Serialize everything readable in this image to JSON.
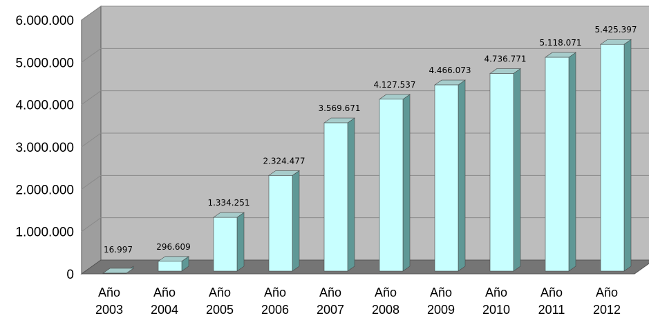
{
  "chart_data": {
    "type": "bar",
    "categories": [
      [
        "Año",
        "2003"
      ],
      [
        "Año",
        "2004"
      ],
      [
        "Año",
        "2005"
      ],
      [
        "Año",
        "2006"
      ],
      [
        "Año",
        "2007"
      ],
      [
        "Año",
        "2008"
      ],
      [
        "Año",
        "2009"
      ],
      [
        "Año",
        "2010"
      ],
      [
        "Año",
        "2011"
      ],
      [
        "Año",
        "2012"
      ]
    ],
    "values": [
      16997,
      296609,
      1334251,
      2324477,
      3569671,
      4127537,
      4466073,
      4736771,
      5118071,
      5425397
    ],
    "data_labels": [
      "16.997",
      "296.609",
      "1.334.251",
      "2.324.477",
      "3.569.671",
      "4.127.537",
      "4.466.073",
      "4.736.771",
      "5.118.071",
      "5.425.397"
    ],
    "y_ticks": [
      "0",
      "1.000.000",
      "2.000.000",
      "3.000.000",
      "4.000.000",
      "5.000.000",
      "6.000.000"
    ],
    "ylim": [
      0,
      6000000
    ],
    "title": "",
    "xlabel": "",
    "ylabel": "",
    "grid": true,
    "legend": "none",
    "colors": {
      "plot_back": "#bdbdbd",
      "plot_side": "#9e9e9e",
      "floor": "#757575",
      "gridline": "#8a8a8a",
      "bar_front": "#c8ffff",
      "bar_side": "#5f9896",
      "bar_top": "#a6cccb"
    }
  }
}
